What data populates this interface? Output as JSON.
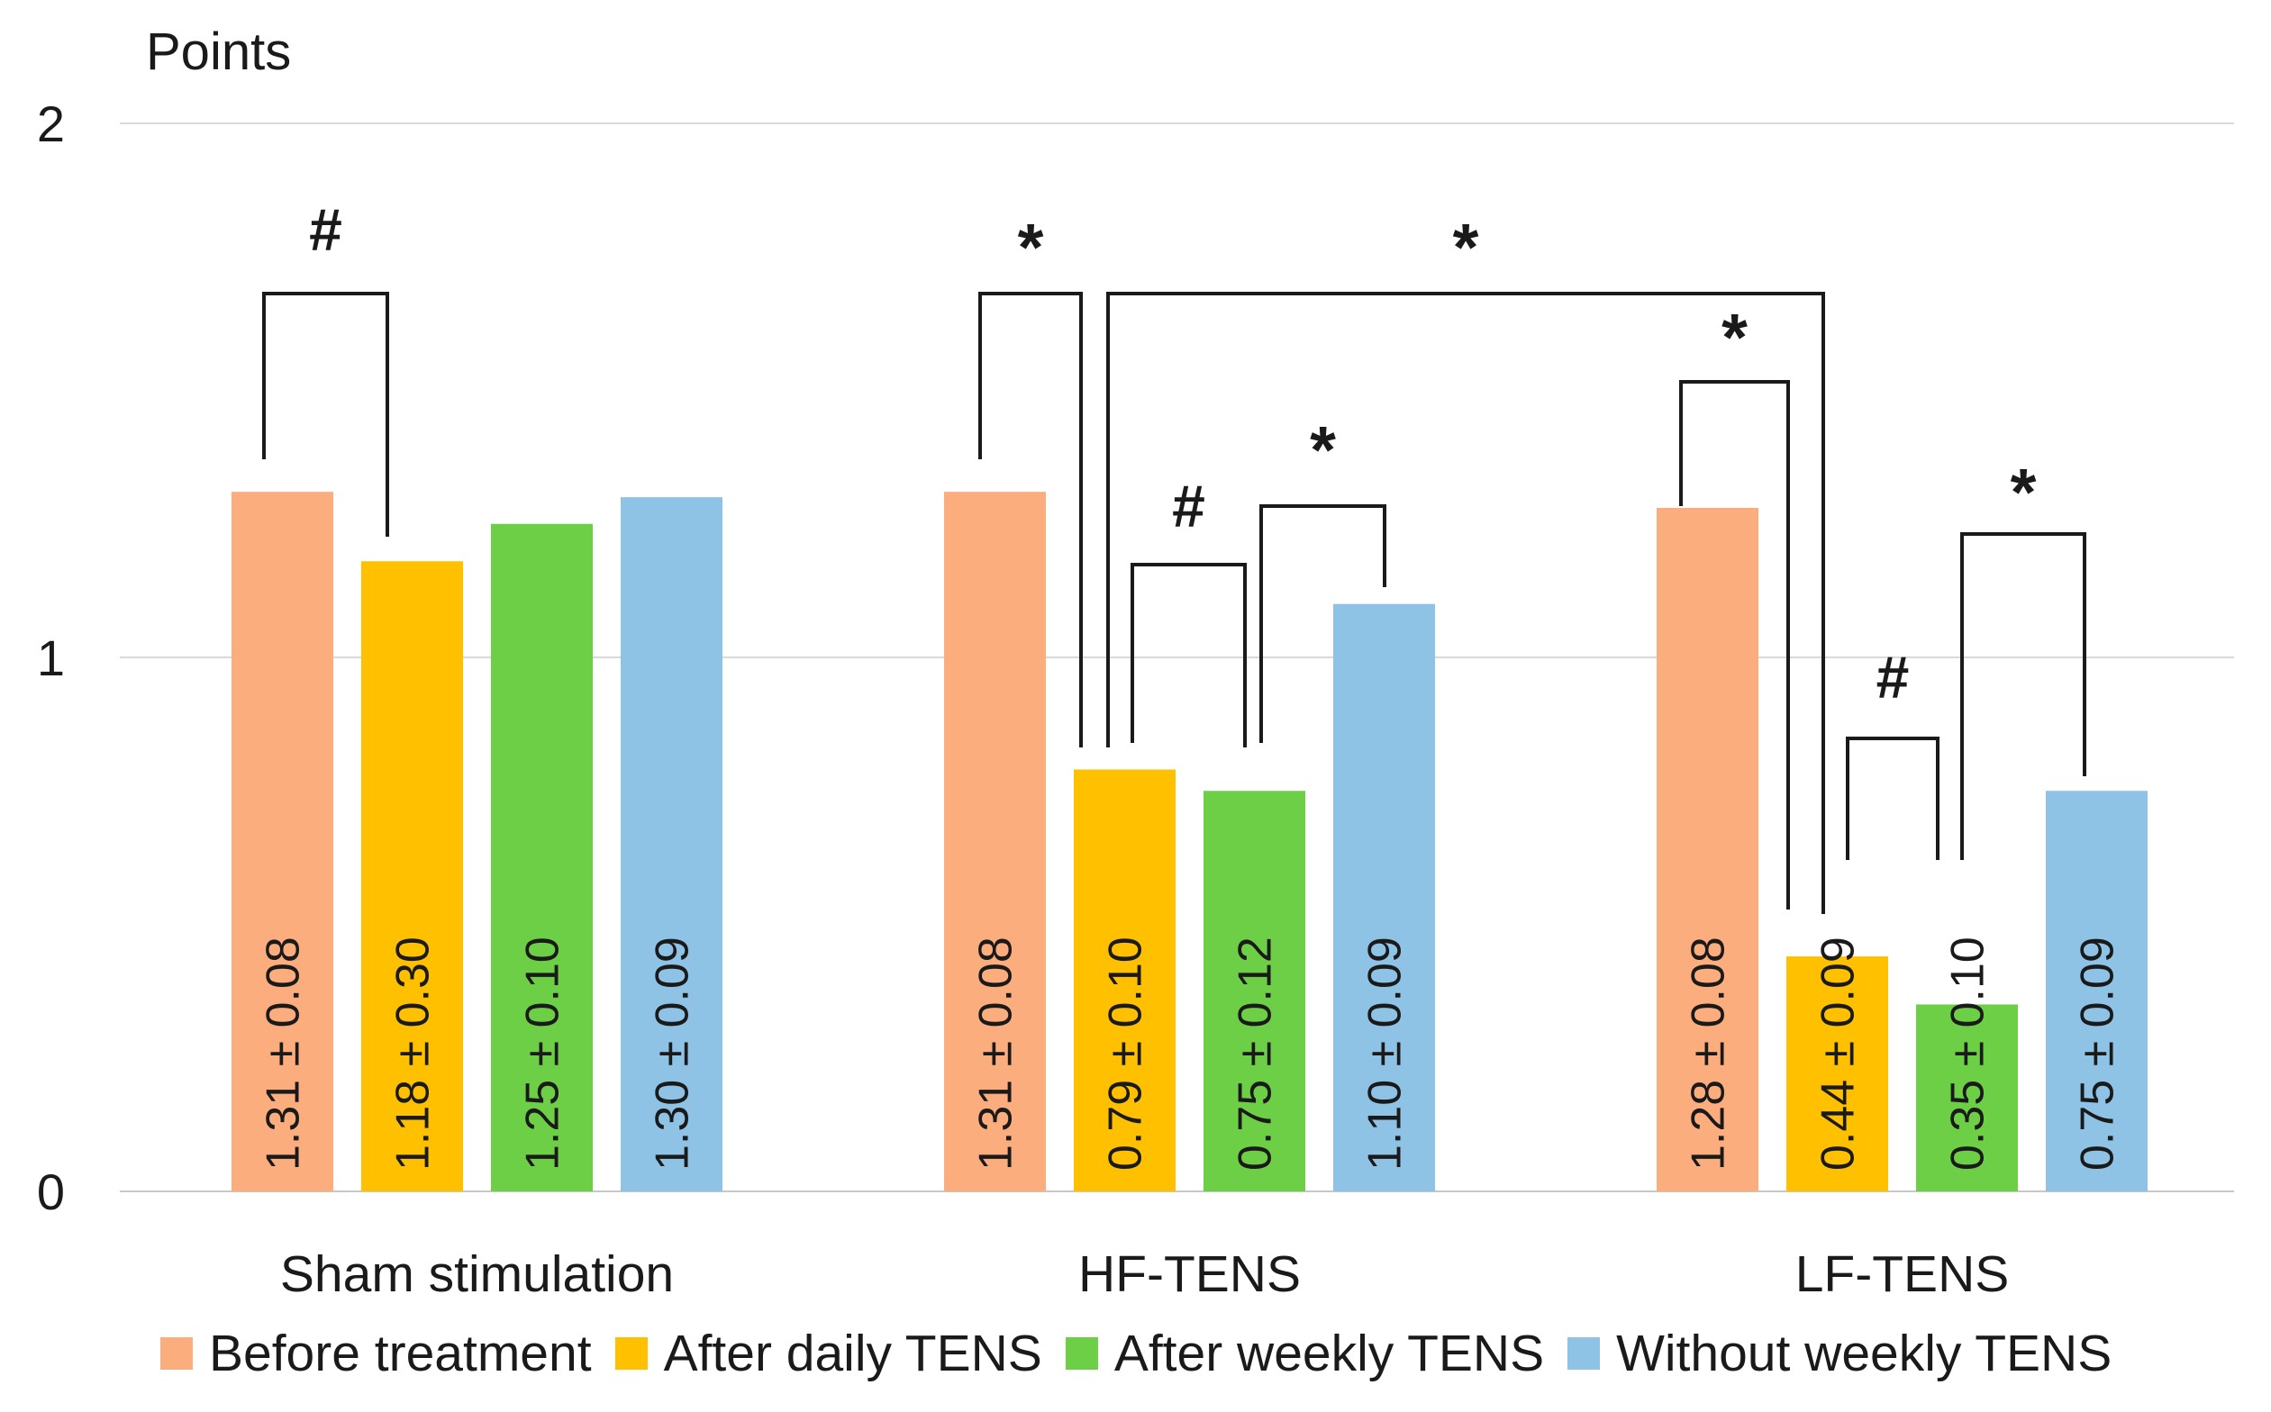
{
  "chart_data": {
    "type": "bar",
    "ylabel": "Points",
    "ylim": [
      0,
      2
    ],
    "yticks": [
      0,
      1,
      2
    ],
    "grid": true,
    "legend_position": "bottom",
    "categories": [
      "Sham stimulation",
      "HF-TENS",
      "LF-TENS"
    ],
    "series": [
      {
        "name": "Before treatment",
        "color": "#FBAD7E",
        "values": [
          1.31,
          1.31,
          1.28
        ],
        "labels": [
          "1.31 ± 0.08",
          "1.31 ± 0.08",
          "1.28 ± 0.08"
        ]
      },
      {
        "name": "After daily TENS",
        "color": "#FFC000",
        "values": [
          1.18,
          0.79,
          0.44
        ],
        "labels": [
          "1.18 ± 0.30",
          "0.79 ± 0.10",
          "0.44 ± 0.09"
        ]
      },
      {
        "name": "After weekly TENS",
        "color": "#6CCF45",
        "values": [
          1.25,
          0.75,
          0.35
        ],
        "labels": [
          "1.25 ± 0.10",
          "0.75 ± 0.12",
          "0.35 ± 0.10"
        ]
      },
      {
        "name": "Without weekly TENS",
        "color": "#8EC3E6",
        "values": [
          1.3,
          1.1,
          0.75
        ],
        "labels": [
          "1.30 ± 0.09",
          "1.10 ± 0.09",
          "0.75 ± 0.09"
        ]
      }
    ],
    "significance": [
      {
        "group": 0,
        "from": 0,
        "to": 1,
        "mark": "#"
      },
      {
        "group": 1,
        "from": 0,
        "to": 1,
        "mark": "*"
      },
      {
        "group": 1,
        "from": 1,
        "to": 2,
        "mark": "#"
      },
      {
        "group": 1,
        "from": 2,
        "to": 3,
        "mark": "*"
      },
      {
        "group": 2,
        "from": 0,
        "to": 1,
        "mark": "*"
      },
      {
        "group": 2,
        "from": 1,
        "to": 2,
        "mark": "#"
      },
      {
        "group": 2,
        "from": 2,
        "to": 3,
        "mark": "*"
      },
      {
        "from_group": 1,
        "from_series": 1,
        "to_group": 2,
        "to_series": 1,
        "mark": "*"
      }
    ]
  }
}
